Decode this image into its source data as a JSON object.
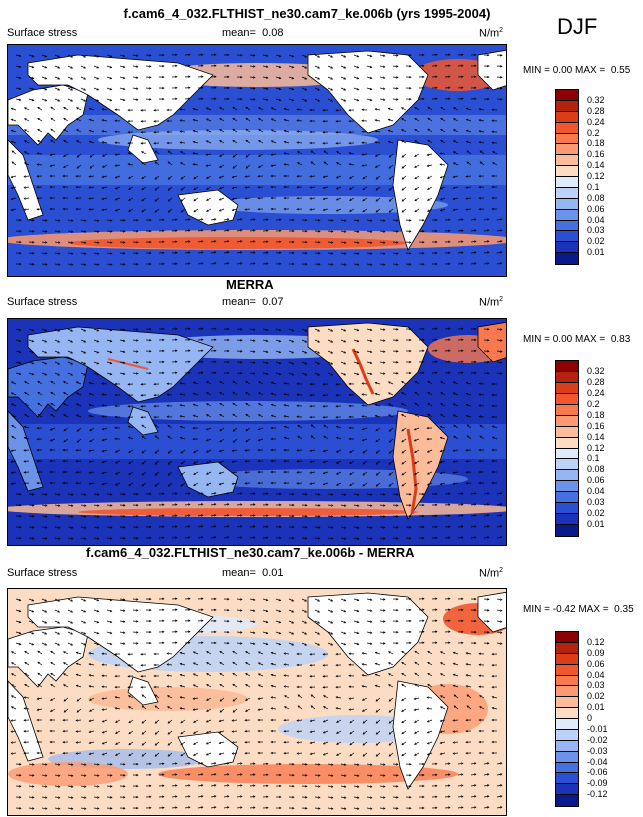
{
  "season": "DJF",
  "panels": [
    {
      "title": "f.cam6_4_032.FLTHIST_ne30.cam7_ke.006b (yrs 1995-2004)",
      "variable": "Surface stress",
      "mean_label": "mean=",
      "mean": "0.08",
      "units": "N/m",
      "units_exp": "2",
      "min_label": "MIN =",
      "min": "0.00",
      "max_label": "MAX =",
      "max": "0.55",
      "colorbar": [
        "0.32",
        "0.28",
        "0.24",
        "0.2",
        "0.18",
        "0.16",
        "0.14",
        "0.12",
        "0.1",
        "0.08",
        "0.06",
        "0.04",
        "0.03",
        "0.02",
        "0.01"
      ],
      "colors": [
        "#8b0000",
        "#b2220f",
        "#d93d1a",
        "#f0572f",
        "#f7794d",
        "#fb9a70",
        "#fcbb99",
        "#fddcc4",
        "#dfeafa",
        "#bcd2f7",
        "#95b6f2",
        "#6b93ea",
        "#4570e0",
        "#2a4fd2",
        "#1a33b8",
        "#0a1a8c"
      ]
    },
    {
      "title": "MERRA",
      "variable": "Surface stress",
      "mean_label": "mean=",
      "mean": "0.07",
      "units": "N/m",
      "units_exp": "2",
      "min_label": "MIN =",
      "min": "0.00",
      "max_label": "MAX =",
      "max": "0.83",
      "colorbar": [
        "0.32",
        "0.28",
        "0.24",
        "0.2",
        "0.18",
        "0.16",
        "0.14",
        "0.12",
        "0.1",
        "0.08",
        "0.06",
        "0.04",
        "0.03",
        "0.02",
        "0.01"
      ],
      "colors": [
        "#8b0000",
        "#b2220f",
        "#d93d1a",
        "#f0572f",
        "#f7794d",
        "#fb9a70",
        "#fcbb99",
        "#fddcc4",
        "#dfeafa",
        "#bcd2f7",
        "#95b6f2",
        "#6b93ea",
        "#4570e0",
        "#2a4fd2",
        "#1a33b8",
        "#0a1a8c"
      ]
    },
    {
      "title": "f.cam6_4_032.FLTHIST_ne30.cam7_ke.006b - MERRA",
      "variable": "Surface stress",
      "mean_label": "mean=",
      "mean": "0.01",
      "units": "N/m",
      "units_exp": "2",
      "min_label": "MIN =",
      "min": "-0.42",
      "max_label": "MAX =",
      "max": "0.35",
      "colorbar": [
        "0.12",
        "0.09",
        "0.06",
        "0.04",
        "0.03",
        "0.02",
        "0.01",
        "0",
        "-0.01",
        "-0.02",
        "-0.03",
        "-0.04",
        "-0.06",
        "-0.09",
        "-0.12"
      ],
      "colors": [
        "#8b0000",
        "#b2220f",
        "#d93d1a",
        "#f0572f",
        "#f7794d",
        "#fb9a70",
        "#fcbb99",
        "#fddcc4",
        "#dfeafa",
        "#bcd2f7",
        "#95b6f2",
        "#6b93ea",
        "#4570e0",
        "#2a4fd2",
        "#1a33b8",
        "#0a1a8c"
      ]
    }
  ]
}
